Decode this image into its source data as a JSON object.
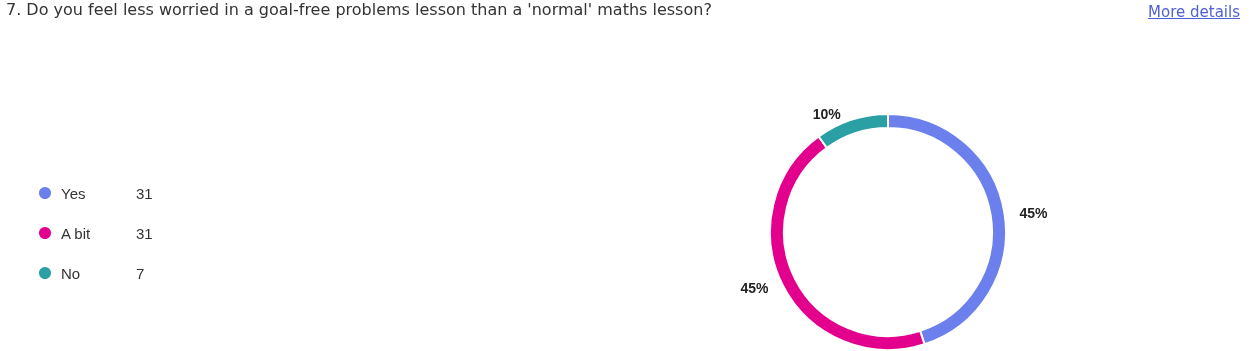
{
  "chart_data": {
    "type": "donut",
    "title": "7. Do you feel less worried in a goal-free problems lesson than a 'normal' maths lesson?",
    "categories": [
      "Yes",
      "A bit",
      "No"
    ],
    "values": [
      45,
      45,
      10
    ],
    "value_labels": [
      "45%",
      "45%",
      "10%"
    ],
    "colors": [
      "#6b80ec",
      "#e3008c",
      "#2aa0a4"
    ],
    "legend": "left",
    "annotations": [
      "More details",
      "31",
      "31",
      "7"
    ]
  }
}
